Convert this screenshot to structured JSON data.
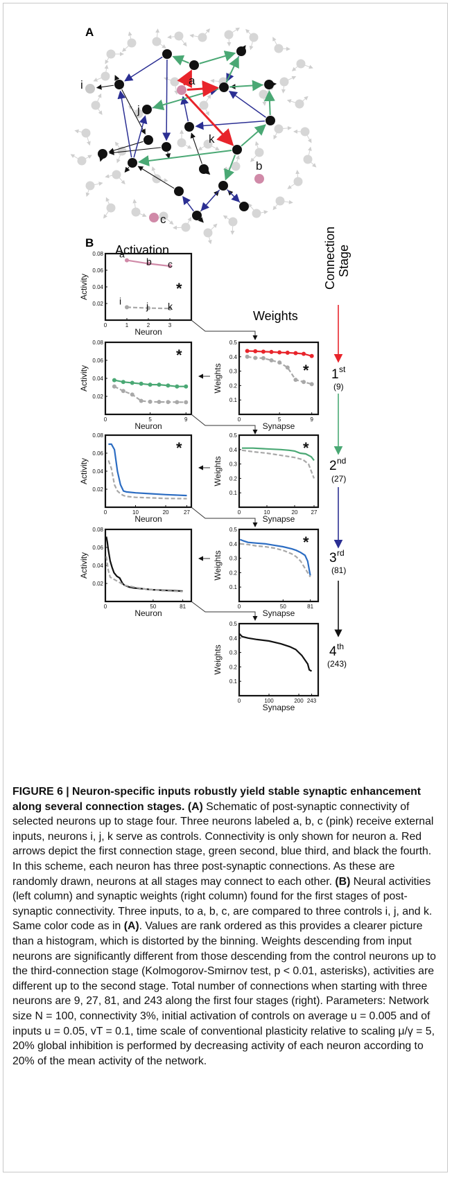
{
  "panel_a": {
    "label": "A",
    "neuron_labels": [
      "a",
      "b",
      "c",
      "i",
      "j",
      "k"
    ]
  },
  "panel_b": {
    "label": "B",
    "activation_title": "Activation",
    "weights_title": "Weights",
    "stage_title_1": "Connection",
    "stage_title_2": "Stage",
    "significance_marker": "*"
  },
  "colors": {
    "stage1": "#e8242b",
    "stage2": "#4aa874",
    "stage3": "#2b2f93",
    "stage4": "#111111",
    "input_neuron": "#d08aa8",
    "control": "#b0b0b0",
    "background_neuron": "#d6d6d6"
  },
  "stages": [
    {
      "ordinal": "1",
      "suffix": "st",
      "count": "(9)"
    },
    {
      "ordinal": "2",
      "suffix": "nd",
      "count": "(27)"
    },
    {
      "ordinal": "3",
      "suffix": "rd",
      "count": "(81)"
    },
    {
      "ordinal": "4",
      "suffix": "th",
      "count": "(243)"
    }
  ],
  "chart_data": [
    {
      "type": "line",
      "panel": "activation-stage-0",
      "xlabel": "Neuron",
      "ylabel": "Activity",
      "xlim": [
        0,
        4
      ],
      "ylim": [
        0,
        0.08
      ],
      "xticks": [
        "0",
        "1",
        "2",
        "3"
      ],
      "yticks": [
        "0.02",
        "0.04",
        "0.06",
        "0.08"
      ],
      "series": [
        {
          "name": "input",
          "color": "#d08aa8",
          "x": [
            1,
            2,
            3
          ],
          "y": [
            0.072,
            0.068,
            0.065
          ],
          "point_labels": [
            "a",
            "b",
            "c"
          ]
        },
        {
          "name": "control",
          "color": "#a8a8a8",
          "dashed": true,
          "x": [
            1,
            2,
            3
          ],
          "y": [
            0.0155,
            0.0145,
            0.014
          ],
          "point_labels": [
            "i",
            "j",
            "k"
          ]
        }
      ],
      "marker": "*"
    },
    {
      "type": "line",
      "panel": "activation-stage-1",
      "xlabel": "Neuron",
      "ylabel": "Activity",
      "xlim": [
        0,
        9.6
      ],
      "ylim": [
        0,
        0.08
      ],
      "xticks": [
        "0",
        "5",
        "9"
      ],
      "yticks": [
        "0.02",
        "0.04",
        "0.06",
        "0.08"
      ],
      "series": [
        {
          "name": "input",
          "color": "#4aa874",
          "x": [
            1,
            2,
            3,
            4,
            5,
            6,
            7,
            8,
            9
          ],
          "y": [
            0.038,
            0.036,
            0.035,
            0.034,
            0.033,
            0.033,
            0.032,
            0.031,
            0.031
          ]
        },
        {
          "name": "control",
          "color": "#a8a8a8",
          "dashed": true,
          "x": [
            1,
            2,
            3,
            4,
            5,
            6,
            7,
            8,
            9
          ],
          "y": [
            0.031,
            0.026,
            0.022,
            0.015,
            0.014,
            0.0138,
            0.0137,
            0.0136,
            0.0135
          ]
        }
      ],
      "marker": "*"
    },
    {
      "type": "line",
      "panel": "activation-stage-2",
      "xlabel": "Neuron",
      "ylabel": "Activity",
      "xlim": [
        0,
        28.5
      ],
      "ylim": [
        0,
        0.08
      ],
      "xticks": [
        "0",
        "10",
        "20",
        "27"
      ],
      "yticks": [
        "0.02",
        "0.04",
        "0.06",
        "0.08"
      ],
      "series": [
        {
          "name": "input",
          "color": "#2b6cc2",
          "x": [
            1,
            2,
            3,
            4,
            5,
            6,
            7,
            10,
            15,
            20,
            27
          ],
          "y": [
            0.07,
            0.07,
            0.064,
            0.04,
            0.025,
            0.018,
            0.017,
            0.016,
            0.015,
            0.014,
            0.013
          ]
        },
        {
          "name": "control",
          "color": "#a8a8a8",
          "dashed": true,
          "x": [
            1,
            2,
            3,
            4,
            5,
            6,
            7,
            10,
            15,
            20,
            27
          ],
          "y": [
            0.052,
            0.043,
            0.025,
            0.018,
            0.015,
            0.013,
            0.012,
            0.011,
            0.0105,
            0.0098,
            0.0095
          ]
        }
      ],
      "marker": "*"
    },
    {
      "type": "line",
      "panel": "activation-stage-3",
      "xlabel": "Neuron",
      "ylabel": "Activity",
      "xlim": [
        0,
        90
      ],
      "ylim": [
        0,
        0.08
      ],
      "xticks": [
        "0",
        "50",
        "81"
      ],
      "yticks": [
        "0.02",
        "0.04",
        "0.06",
        "0.08"
      ],
      "series": [
        {
          "name": "input",
          "color": "#111111",
          "x": [
            1,
            2,
            3,
            5,
            7,
            9,
            12,
            15,
            18,
            20,
            25,
            30,
            40,
            50,
            60,
            70,
            81
          ],
          "y": [
            0.072,
            0.066,
            0.058,
            0.045,
            0.038,
            0.032,
            0.028,
            0.026,
            0.02,
            0.018,
            0.016,
            0.015,
            0.014,
            0.013,
            0.0125,
            0.012,
            0.0115
          ]
        },
        {
          "name": "control",
          "color": "#a8a8a8",
          "dashed": true,
          "x": [
            1,
            3,
            5,
            10,
            15,
            20,
            30,
            40,
            50,
            60,
            81
          ],
          "y": [
            0.05,
            0.035,
            0.027,
            0.024,
            0.021,
            0.018,
            0.016,
            0.014,
            0.013,
            0.012,
            0.011
          ]
        }
      ]
    },
    {
      "type": "line",
      "panel": "weights-stage-1",
      "xlabel": "Synapse",
      "ylabel": "Weights",
      "xlim": [
        0,
        9.8
      ],
      "ylim": [
        0,
        0.5
      ],
      "xticks": [
        "0",
        "5",
        "9"
      ],
      "yticks": [
        "0.1",
        "0.2",
        "0.3",
        "0.4",
        "0.5"
      ],
      "series": [
        {
          "name": "input",
          "color": "#e8242b",
          "x": [
            1,
            2,
            3,
            4,
            5,
            6,
            7,
            8,
            9
          ],
          "y": [
            0.44,
            0.438,
            0.435,
            0.433,
            0.43,
            0.428,
            0.425,
            0.42,
            0.405
          ]
        },
        {
          "name": "control",
          "color": "#a8a8a8",
          "dashed": true,
          "x": [
            1,
            2,
            3,
            4,
            5,
            6,
            7,
            8,
            9
          ],
          "y": [
            0.4,
            0.392,
            0.39,
            0.375,
            0.36,
            0.325,
            0.24,
            0.225,
            0.21
          ]
        }
      ],
      "marker": "*"
    },
    {
      "type": "line",
      "panel": "weights-stage-2",
      "xlabel": "Synapse",
      "ylabel": "Weights",
      "xlim": [
        0,
        28.5
      ],
      "ylim": [
        0,
        0.5
      ],
      "xticks": [
        "0",
        "10",
        "20",
        "27"
      ],
      "yticks": [
        "0.1",
        "0.2",
        "0.3",
        "0.4",
        "0.5"
      ],
      "series": [
        {
          "name": "input",
          "color": "#4aa874",
          "x": [
            1,
            5,
            10,
            15,
            18,
            20,
            22,
            24,
            26,
            27
          ],
          "y": [
            0.41,
            0.41,
            0.405,
            0.4,
            0.395,
            0.39,
            0.375,
            0.37,
            0.35,
            0.325
          ]
        },
        {
          "name": "control",
          "color": "#a8a8a8",
          "dashed": true,
          "x": [
            1,
            5,
            10,
            15,
            20,
            23,
            25,
            26,
            27
          ],
          "y": [
            0.395,
            0.385,
            0.375,
            0.36,
            0.345,
            0.33,
            0.3,
            0.25,
            0.2
          ]
        }
      ],
      "marker": "*"
    },
    {
      "type": "line",
      "panel": "weights-stage-3",
      "xlabel": "Synapse",
      "ylabel": "Weights",
      "xlim": [
        0,
        90
      ],
      "ylim": [
        0,
        0.5
      ],
      "xticks": [
        "0",
        "50",
        "81"
      ],
      "yticks": [
        "0.1",
        "0.2",
        "0.3",
        "0.4",
        "0.5"
      ],
      "series": [
        {
          "name": "input",
          "color": "#2b6cc2",
          "x": [
            1,
            5,
            10,
            20,
            30,
            40,
            50,
            60,
            65,
            70,
            75,
            78,
            81
          ],
          "y": [
            0.43,
            0.42,
            0.41,
            0.405,
            0.4,
            0.39,
            0.38,
            0.365,
            0.355,
            0.34,
            0.32,
            0.28,
            0.18
          ]
        },
        {
          "name": "control",
          "color": "#a8a8a8",
          "dashed": true,
          "x": [
            1,
            10,
            20,
            30,
            40,
            50,
            60,
            65,
            70,
            75,
            81
          ],
          "y": [
            0.4,
            0.395,
            0.385,
            0.38,
            0.37,
            0.355,
            0.33,
            0.31,
            0.28,
            0.23,
            0.17
          ]
        }
      ],
      "marker": "*"
    },
    {
      "type": "line",
      "panel": "weights-stage-4",
      "xlabel": "Synapse",
      "ylabel": "Weights",
      "xlim": [
        0,
        265
      ],
      "ylim": [
        0,
        0.5
      ],
      "xticks": [
        "0",
        "100",
        "200",
        "243"
      ],
      "yticks": [
        "0.1",
        "0.2",
        "0.3",
        "0.4",
        "0.5"
      ],
      "series": [
        {
          "name": "input",
          "color": "#111111",
          "x": [
            1,
            5,
            10,
            30,
            60,
            100,
            140,
            170,
            190,
            200,
            210,
            220,
            230,
            235,
            243
          ],
          "y": [
            0.43,
            0.42,
            0.41,
            0.4,
            0.39,
            0.38,
            0.36,
            0.34,
            0.32,
            0.3,
            0.28,
            0.25,
            0.22,
            0.18,
            0.17
          ]
        }
      ]
    }
  ],
  "caption": {
    "title": "FIGURE 6 | Neuron-specific inputs robustly yield stable synaptic enhancement along several connection stages.",
    "part_a_label": "(A)",
    "part_a_text": "Schematic of post-synaptic connectivity of selected neurons up to stage four. Three neurons labeled a, b, c (pink) receive external inputs, neurons i, j, k serve as controls. Connectivity is only shown for neuron a. Red arrows depict the first connection stage, green second, blue third, and black the fourth. In this scheme, each neuron has three post-synaptic connections. As these are randomly drawn, neurons at all stages may connect to each other.",
    "part_b_label": "(B)",
    "part_b_text_1": "Neural activities (left column) and synaptic weights (right column) found for the first stages of post-synaptic connectivity. Three inputs, to a, b, c, are compared to three controls i, j, and k. Same color code as in",
    "part_b_ref": "(A)",
    "part_b_text_2": ". Values are rank ordered as this provides a clearer picture than a histogram, which is distorted by the binning. Weights descending from input neurons are significantly different from those descending from the control neurons up to the third-connection stage (Kolmogorov-Smirnov test, p < 0.01, asterisks), activities are different up to the second stage. Total number of connections when starting with three neurons are 9, 27, 81, and 243 along the first four stages (right). Parameters: Network size N = 100, connectivity 3%, initial activation of controls on average u = 0.005 and of inputs u = 0.05, vT = 0.1, time scale of conventional plasticity relative to scaling μ/γ = 5, 20% global inhibition is performed by decreasing activity of each neuron according to 20% of the mean activity of the network."
  }
}
